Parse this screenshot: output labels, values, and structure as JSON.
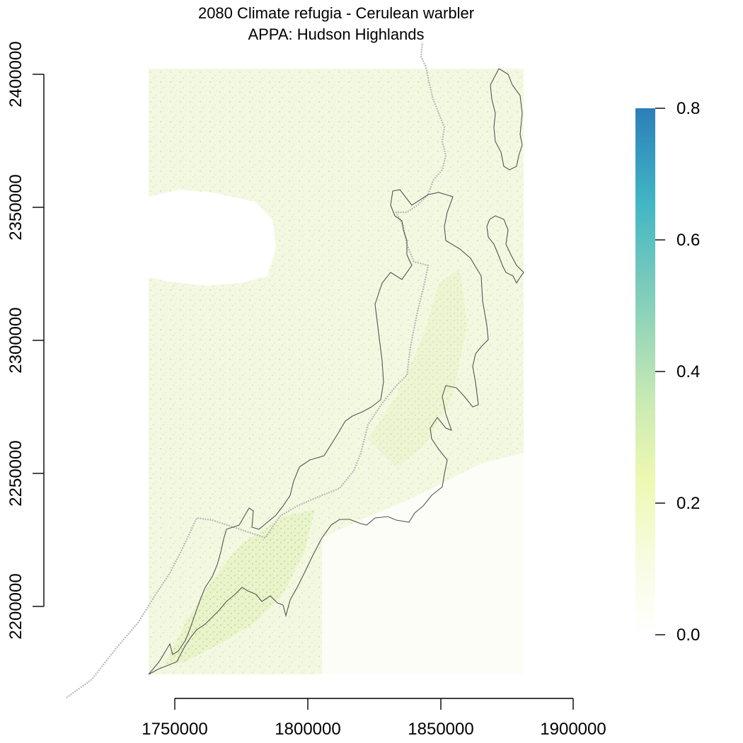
{
  "title": {
    "line1": "2080 Climate refugia - Cerulean warbler",
    "line2": "APPA: Hudson Highlands"
  },
  "x_axis": {
    "ticks": [
      1750000,
      1800000,
      1850000,
      1900000
    ],
    "tick_labels": [
      "1750000",
      "1800000",
      "1850000",
      "1900000"
    ]
  },
  "y_axis": {
    "ticks": [
      2400000,
      2350000,
      2300000,
      2250000,
      2200000
    ],
    "tick_labels": [
      "2400000",
      "2350000",
      "2300000",
      "2250000",
      "2200000"
    ]
  },
  "legend": {
    "ticks": [
      0.8,
      0.6,
      0.4,
      0.2,
      0.0
    ],
    "tick_labels": [
      "0.8",
      "0.6",
      "0.4",
      "0.2",
      "0.0"
    ],
    "range": [
      0,
      0.8
    ],
    "colors": [
      "#ffffff",
      "#f7fcdf",
      "#edf8b1",
      "#c7e9b4",
      "#7fcdbb",
      "#41b6c4",
      "#2c7fb8"
    ]
  },
  "map": {
    "raster_extent_x": [
      1740000,
      1881000
    ],
    "raster_extent_y": [
      2173000,
      2400000
    ],
    "raster_fill_colors": [
      "#f4f9e4",
      "#e8f3c8",
      "#dcedb3"
    ],
    "boundary_color": "#555555",
    "state_line_color": "#b8b8b8"
  }
}
